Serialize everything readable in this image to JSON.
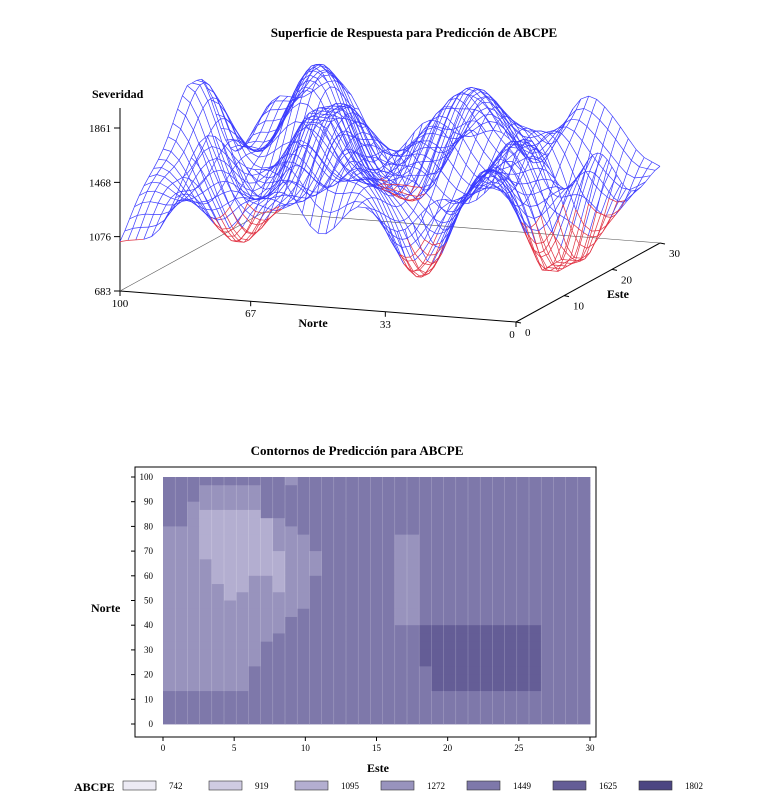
{
  "chart_data": [
    {
      "type": "surface3d",
      "title": "Superficie de Respuesta para Predicción de ABCPE",
      "zlabel": "Severidad",
      "xlabel": "Norte",
      "ylabel": "Este",
      "z_ticks": [
        683,
        1076,
        1468,
        1861
      ],
      "norte_ticks": [
        100,
        67,
        33,
        0
      ],
      "este_ticks": [
        0,
        10,
        20,
        30
      ],
      "zlim": [
        683,
        1861
      ],
      "norte_range": [
        0,
        100
      ],
      "este_range": [
        0,
        30
      ],
      "mesh_color": "#3b3bff",
      "low_mesh_color": "#e03040",
      "low_threshold": 1076
    },
    {
      "type": "heatmap",
      "title": "Contornos de Predicción para ABCPE",
      "xlabel": "Este",
      "ylabel": "Norte",
      "x_ticks": [
        0,
        5,
        10,
        15,
        20,
        25,
        30
      ],
      "y_ticks": [
        0,
        10,
        20,
        30,
        40,
        50,
        60,
        70,
        80,
        90,
        100
      ],
      "xlim": [
        0,
        30
      ],
      "ylim": [
        0,
        100
      ],
      "legend_label": "ABCPE",
      "levels": [
        742,
        919,
        1095,
        1272,
        1449,
        1625,
        1802
      ],
      "level_colors": [
        "#eceaf4",
        "#cfcbe2",
        "#b3aed0",
        "#9893bd",
        "#7e78aa",
        "#645d96",
        "#4c4682"
      ],
      "grid_rows": [
        "44444444443444444444444444444444444",
        "44433333444444444444444444444444444",
        "44433333444444444444444444444444444",
        "44333333444444444444444444444444444",
        "44322222444444444444444444444444444",
        "44322222234444444444444444444444444",
        "33322222233444444444444444444444444",
        "33322222233344444443344444444444444",
        "33322222233344444443344444444444444",
        "33322222223334444443344444444444444",
        "33332222223334444443344444444444444",
        "33332222223334444443344444444444444",
        "33332223323344444443344444444444444",
        "33333223323344444443344444444444444",
        "33333233333344444443344444444444444",
        "33333333333344444443344444444444444",
        "33333333333444444443344444444444444",
        "33333333334444444443344444444444444",
        "33333333334444444444455555555554444",
        "33333333344444444444455555555554444",
        "33333333444444444444455555555554444",
        "33333333444444444444455555555554444",
        "33333333444444444444455555555554444",
        "33333334444444444444445555555554444",
        "33333334444444444444445555555554444",
        "33333334444444444444445555555554444",
        "44444444444444444444444444444444444",
        "44444444444444444444444444444444444",
        "44444444444444444444444444444444444",
        "44444444444444444444444444444444444"
      ],
      "grid_note_values": [
        "level index per cell, row 0 = Norte 100"
      ]
    }
  ]
}
